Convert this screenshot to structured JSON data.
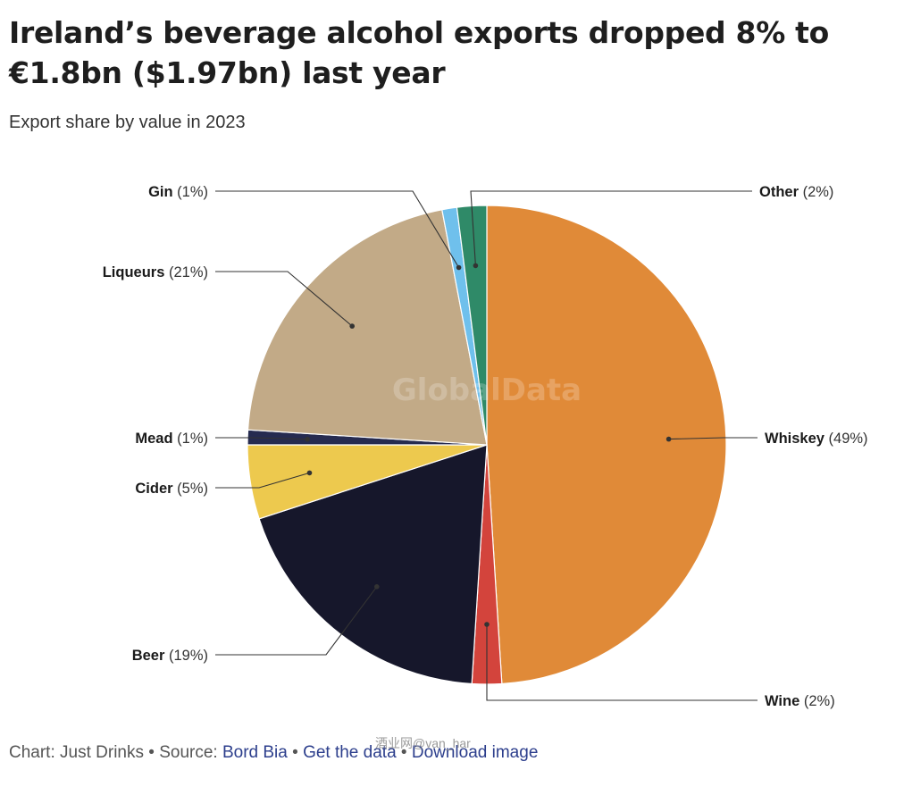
{
  "title": "Ireland’s beverage alcohol exports dropped 8% to €1.8bn ($1.97bn) last year",
  "subtitle": "Export share by value in 2023",
  "watermark": "GlobalData",
  "footer": {
    "chart_credit": "Chart: Just Drinks",
    "source_prefix": "Source:",
    "source_link": "Bord Bia",
    "get_data_link": "Get the data",
    "download_link": "Download image",
    "separator": "•",
    "overlay_watermark": "酒业网@van_har"
  },
  "chart_data": {
    "type": "pie",
    "title": "Ireland’s beverage alcohol exports dropped 8% to €1.8bn ($1.97bn) last year",
    "subtitle": "Export share by value in 2023",
    "unit": "%",
    "slices": [
      {
        "name": "Whiskey",
        "value": 49,
        "label": "(49%)",
        "color": "#E08A38"
      },
      {
        "name": "Wine",
        "value": 2,
        "label": "(2%)",
        "color": "#D3443C"
      },
      {
        "name": "Beer",
        "value": 19,
        "label": "(19%)",
        "color": "#16172B"
      },
      {
        "name": "Cider",
        "value": 5,
        "label": "(5%)",
        "color": "#EDC94E"
      },
      {
        "name": "Mead",
        "value": 1,
        "label": "(1%)",
        "color": "#262B50"
      },
      {
        "name": "Liqueurs",
        "value": 21,
        "label": "(21%)",
        "color": "#C2AA87"
      },
      {
        "name": "Gin",
        "value": 1,
        "label": "(1%)",
        "color": "#6FC0EC"
      },
      {
        "name": "Other",
        "value": 2,
        "label": "(2%)",
        "color": "#2F8A68"
      }
    ]
  }
}
